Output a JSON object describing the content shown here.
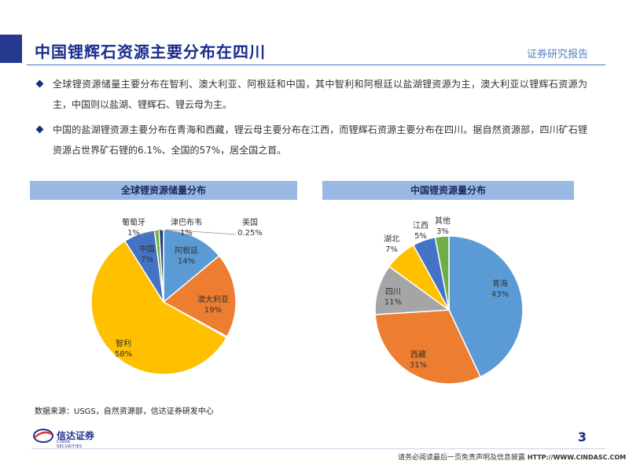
{
  "header": {
    "title": "中国锂辉石资源主要分布在四川",
    "brand": "证券研究报告"
  },
  "bullets": [
    "全球锂资源储量主要分布在智利、澳大利亚、阿根廷和中国，其中智利和阿根廷以盐湖锂资源为主，澳大利亚以锂辉石资源为主，中国则以盐湖、锂辉石、锂云母为主。",
    "中国的盐湖锂资源主要分布在青海和西藏，锂云母主要分布在江西，而锂辉石资源主要分布在四川。据自然资源部，四川矿石锂资源占世界矿石锂的6.1%、全国的57%，居全国之首。"
  ],
  "chart_data": [
    {
      "type": "pie",
      "title": "全球锂资源储量分布",
      "slices": [
        {
          "label": "阿根廷",
          "value": 14,
          "display": "14%",
          "color": "#5b9bd5"
        },
        {
          "label": "澳大利亚",
          "value": 19,
          "display": "19%",
          "color": "#ed7d31"
        },
        {
          "label": "美国",
          "value": 0.25,
          "display": "0.25%",
          "color": "#a5a5a5"
        },
        {
          "label": "智利",
          "value": 58,
          "display": "58%",
          "color": "#ffc000"
        },
        {
          "label": "中国",
          "value": 7,
          "display": "7%",
          "color": "#4472c4"
        },
        {
          "label": "葡萄牙",
          "value": 1,
          "display": "1%",
          "color": "#70ad47"
        },
        {
          "label": "津巴布韦",
          "value": 1,
          "display": "1%",
          "color": "#264478"
        }
      ]
    },
    {
      "type": "pie",
      "title": "中国锂资源量分布",
      "slices": [
        {
          "label": "青海",
          "value": 43,
          "display": "43%",
          "color": "#5b9bd5"
        },
        {
          "label": "西藏",
          "value": 31,
          "display": "31%",
          "color": "#ed7d31"
        },
        {
          "label": "四川",
          "value": 11,
          "display": "11%",
          "color": "#a5a5a5"
        },
        {
          "label": "湖北",
          "value": 7,
          "display": "7%",
          "color": "#ffc000"
        },
        {
          "label": "江西",
          "value": 5,
          "display": "5%",
          "color": "#4472c4"
        },
        {
          "label": "其他",
          "value": 3,
          "display": "3%",
          "color": "#70ad47"
        }
      ]
    }
  ],
  "footer": {
    "source": "数据来源：USGS，自然资源部，信达证券研发中心",
    "company": "信达证券",
    "company_en": "CINDA SECURITIES",
    "page": "3",
    "disclaimer": "请务必阅读最后一页免责声明及信息披露",
    "url": "HTTP://WWW.CINDASC.COM"
  }
}
